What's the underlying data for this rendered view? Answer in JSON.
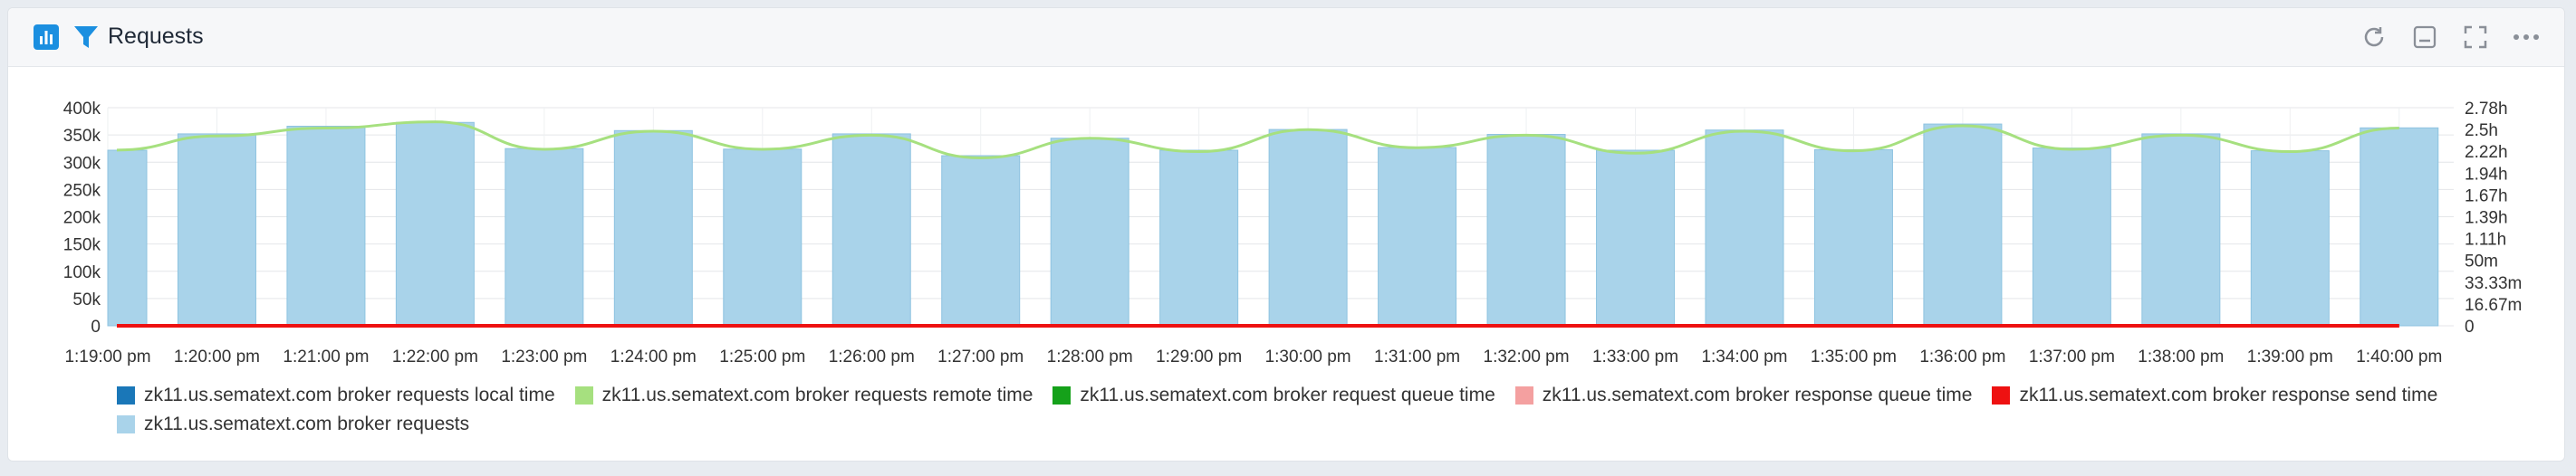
{
  "panel": {
    "title": "Requests",
    "icons": {
      "chart": "bar-chart-icon",
      "filter": "filter-icon",
      "refresh": "refresh-icon",
      "minimize": "minimize-icon",
      "fullscreen": "fullscreen-icon",
      "more": "more-icon"
    }
  },
  "chart_data": {
    "type": "bar",
    "title": "",
    "xlabel": "",
    "ylabel": "",
    "x": [
      "1:19:00 pm",
      "1:20:00 pm",
      "1:21:00 pm",
      "1:22:00 pm",
      "1:23:00 pm",
      "1:24:00 pm",
      "1:25:00 pm",
      "1:26:00 pm",
      "1:27:00 pm",
      "1:28:00 pm",
      "1:29:00 pm",
      "1:30:00 pm",
      "1:31:00 pm",
      "1:32:00 pm",
      "1:33:00 pm",
      "1:34:00 pm",
      "1:35:00 pm",
      "1:36:00 pm",
      "1:37:00 pm",
      "1:38:00 pm",
      "1:39:00 pm",
      "1:40:00 pm"
    ],
    "ylim": [
      0,
      400000
    ],
    "y_ticks": [
      "0",
      "50k",
      "100k",
      "150k",
      "200k",
      "250k",
      "300k",
      "350k",
      "400k"
    ],
    "y2_ticks": [
      "0",
      "16.67m",
      "33.33m",
      "50m",
      "1.11h",
      "1.39h",
      "1.67h",
      "1.94h",
      "2.22h",
      "2.5h",
      "2.78h"
    ],
    "y2lim_hours": [
      0,
      2.78
    ],
    "grid": true,
    "legend_position": "bottom",
    "series": [
      {
        "name": "zk11.us.sematext.com broker requests local time",
        "color": "#1a77b8",
        "axis": "right",
        "values_hours": [
          0,
          0,
          0,
          0,
          0,
          0,
          0,
          0,
          0,
          0,
          0,
          0,
          0,
          0,
          0,
          0,
          0,
          0,
          0,
          0,
          0,
          0
        ]
      },
      {
        "name": "zk11.us.sematext.com broker requests remote time",
        "color": "#a6e07f",
        "axis": "right",
        "values_hours": [
          2.24,
          2.42,
          2.52,
          2.6,
          2.25,
          2.48,
          2.25,
          2.43,
          2.14,
          2.39,
          2.22,
          2.5,
          2.27,
          2.43,
          2.2,
          2.48,
          2.23,
          2.55,
          2.25,
          2.43,
          2.22,
          2.52
        ]
      },
      {
        "name": "zk11.us.sematext.com broker request queue time",
        "color": "#15a11a",
        "axis": "right",
        "values_hours": [
          0,
          0,
          0,
          0,
          0,
          0,
          0,
          0,
          0,
          0,
          0,
          0,
          0,
          0,
          0,
          0,
          0,
          0,
          0,
          0,
          0,
          0
        ]
      },
      {
        "name": "zk11.us.sematext.com broker response queue time",
        "color": "#f4a0a0",
        "axis": "right",
        "values_hours": [
          0,
          0,
          0,
          0,
          0,
          0,
          0,
          0,
          0,
          0,
          0,
          0,
          0,
          0,
          0,
          0,
          0,
          0,
          0,
          0,
          0,
          0
        ]
      },
      {
        "name": "zk11.us.sematext.com broker response send time",
        "color": "#ee1111",
        "axis": "right",
        "values_hours": [
          0,
          0,
          0,
          0,
          0,
          0,
          0,
          0,
          0,
          0,
          0,
          0,
          0,
          0,
          0,
          0,
          0,
          0,
          0,
          0,
          0,
          0
        ]
      },
      {
        "name": "zk11.us.sematext.com broker requests",
        "color": "#a9d3ea",
        "axis": "left",
        "values": [
          322000,
          352000,
          366000,
          373000,
          325000,
          358000,
          324000,
          352000,
          312000,
          344000,
          322000,
          360000,
          327000,
          351000,
          322000,
          359000,
          323000,
          370000,
          326000,
          352000,
          321000,
          363000
        ]
      }
    ]
  }
}
